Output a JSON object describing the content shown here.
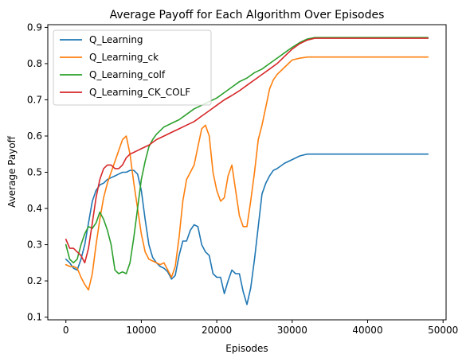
{
  "chart_data": {
    "type": "line",
    "title": "Average Payoff for Each Algorithm Over Episodes",
    "xlabel": "Episodes",
    "ylabel": "Average Payoff",
    "xlim": [
      -2400,
      50400
    ],
    "ylim": [
      0.0925,
      0.9075
    ],
    "xticks": [
      0,
      10000,
      20000,
      30000,
      40000,
      50000
    ],
    "yticks": [
      0.1,
      0.2,
      0.3,
      0.4,
      0.5,
      0.6,
      0.7,
      0.8,
      0.9
    ],
    "grid": false,
    "legend_position": "upper-left",
    "series": [
      {
        "name": "Q_Learning",
        "color": "#1f77b4",
        "x": [
          0,
          500,
          1000,
          1500,
          2000,
          2500,
          3000,
          3500,
          4000,
          4500,
          5000,
          5500,
          6000,
          6500,
          7000,
          7500,
          8000,
          8500,
          9000,
          9500,
          10000,
          10500,
          11000,
          11500,
          12000,
          12500,
          13000,
          13500,
          14000,
          14500,
          15000,
          15500,
          16000,
          16500,
          17000,
          17500,
          18000,
          18500,
          19000,
          19500,
          20000,
          20500,
          21000,
          21500,
          22000,
          22500,
          23000,
          23500,
          24000,
          24500,
          25000,
          25500,
          26000,
          26500,
          27000,
          27500,
          28000,
          29000,
          30000,
          31000,
          32000,
          33000,
          35000,
          38000,
          42000,
          46000,
          48000
        ],
        "y": [
          0.26,
          0.25,
          0.235,
          0.23,
          0.26,
          0.3,
          0.36,
          0.42,
          0.45,
          0.465,
          0.47,
          0.48,
          0.485,
          0.49,
          0.495,
          0.5,
          0.5,
          0.505,
          0.505,
          0.495,
          0.45,
          0.37,
          0.3,
          0.265,
          0.25,
          0.24,
          0.235,
          0.225,
          0.205,
          0.215,
          0.27,
          0.31,
          0.31,
          0.34,
          0.355,
          0.35,
          0.3,
          0.28,
          0.27,
          0.22,
          0.21,
          0.21,
          0.165,
          0.2,
          0.23,
          0.22,
          0.22,
          0.17,
          0.135,
          0.18,
          0.26,
          0.35,
          0.44,
          0.47,
          0.49,
          0.505,
          0.51,
          0.525,
          0.535,
          0.545,
          0.55,
          0.55,
          0.55,
          0.55,
          0.55,
          0.55,
          0.55
        ]
      },
      {
        "name": "Q_Learning_ck",
        "color": "#ff7f0e",
        "x": [
          0,
          500,
          1000,
          1500,
          2000,
          2500,
          3000,
          3500,
          4000,
          4500,
          5000,
          5500,
          6000,
          6500,
          7000,
          7500,
          8000,
          8500,
          9000,
          9500,
          10000,
          10500,
          11000,
          11500,
          12000,
          12500,
          13000,
          13500,
          14000,
          14500,
          15000,
          15500,
          16000,
          16500,
          17000,
          17500,
          18000,
          18500,
          19000,
          19500,
          20000,
          20500,
          21000,
          21500,
          22000,
          22500,
          23000,
          23500,
          24000,
          24500,
          25000,
          25500,
          26000,
          26500,
          27000,
          27500,
          28000,
          29000,
          30000,
          31000,
          32000,
          33000,
          35000,
          38000,
          42000,
          46000,
          48000
        ],
        "y": [
          0.245,
          0.24,
          0.24,
          0.235,
          0.21,
          0.19,
          0.175,
          0.22,
          0.3,
          0.37,
          0.43,
          0.47,
          0.5,
          0.53,
          0.56,
          0.59,
          0.6,
          0.55,
          0.47,
          0.4,
          0.33,
          0.28,
          0.26,
          0.255,
          0.25,
          0.245,
          0.25,
          0.23,
          0.21,
          0.24,
          0.32,
          0.42,
          0.48,
          0.5,
          0.52,
          0.57,
          0.62,
          0.63,
          0.6,
          0.5,
          0.45,
          0.42,
          0.43,
          0.49,
          0.52,
          0.45,
          0.38,
          0.35,
          0.35,
          0.42,
          0.5,
          0.59,
          0.63,
          0.68,
          0.73,
          0.755,
          0.77,
          0.79,
          0.81,
          0.815,
          0.818,
          0.818,
          0.818,
          0.818,
          0.818,
          0.818,
          0.818
        ]
      },
      {
        "name": "Q_Learning_colf",
        "color": "#2ca02c",
        "x": [
          0,
          500,
          1000,
          1500,
          2000,
          2500,
          3000,
          3500,
          4000,
          4500,
          5000,
          5500,
          6000,
          6500,
          7000,
          7500,
          8000,
          8500,
          9000,
          9500,
          10000,
          10500,
          11000,
          11500,
          12000,
          12500,
          13000,
          13500,
          14000,
          15000,
          16000,
          17000,
          18000,
          19000,
          20000,
          21000,
          22000,
          23000,
          24000,
          25000,
          26000,
          27000,
          28000,
          29000,
          30000,
          31000,
          32000,
          33000,
          35000,
          38000,
          42000,
          46000,
          48000
        ],
        "y": [
          0.3,
          0.26,
          0.25,
          0.26,
          0.3,
          0.33,
          0.35,
          0.345,
          0.36,
          0.39,
          0.37,
          0.34,
          0.3,
          0.23,
          0.22,
          0.225,
          0.22,
          0.25,
          0.32,
          0.4,
          0.48,
          0.53,
          0.57,
          0.59,
          0.605,
          0.615,
          0.625,
          0.63,
          0.635,
          0.645,
          0.66,
          0.675,
          0.685,
          0.695,
          0.705,
          0.72,
          0.735,
          0.75,
          0.76,
          0.775,
          0.785,
          0.8,
          0.815,
          0.83,
          0.845,
          0.858,
          0.868,
          0.872,
          0.872,
          0.872,
          0.872,
          0.872,
          0.872
        ]
      },
      {
        "name": "Q_Learning_CK_COLF",
        "color": "#d62728",
        "x": [
          0,
          500,
          1000,
          1500,
          2000,
          2500,
          3000,
          3500,
          4000,
          4500,
          5000,
          5500,
          6000,
          6500,
          7000,
          7500,
          8000,
          8500,
          9000,
          9500,
          10000,
          11000,
          12000,
          13000,
          14000,
          15000,
          16000,
          17000,
          18000,
          19000,
          20000,
          21000,
          22000,
          23000,
          24000,
          25000,
          26000,
          27000,
          28000,
          29000,
          30000,
          31000,
          32000,
          33000,
          35000,
          38000,
          42000,
          46000,
          48000
        ],
        "y": [
          0.315,
          0.29,
          0.29,
          0.28,
          0.27,
          0.25,
          0.29,
          0.36,
          0.43,
          0.48,
          0.51,
          0.52,
          0.52,
          0.51,
          0.51,
          0.52,
          0.54,
          0.55,
          0.555,
          0.56,
          0.565,
          0.575,
          0.59,
          0.6,
          0.61,
          0.62,
          0.63,
          0.64,
          0.655,
          0.67,
          0.685,
          0.7,
          0.712,
          0.725,
          0.74,
          0.755,
          0.77,
          0.785,
          0.8,
          0.82,
          0.84,
          0.855,
          0.865,
          0.87,
          0.87,
          0.87,
          0.87,
          0.87,
          0.87
        ]
      }
    ]
  }
}
